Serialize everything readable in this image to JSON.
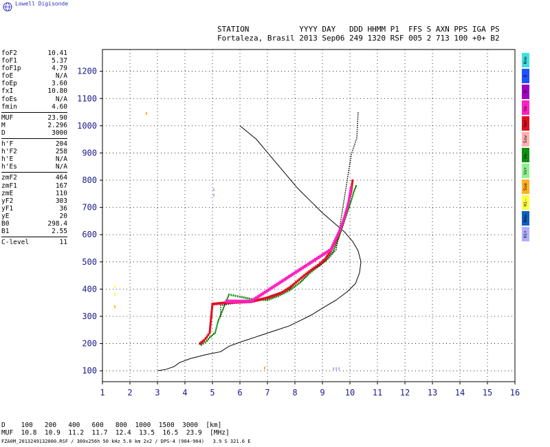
{
  "logo": {
    "text": "Lowell Digisonde"
  },
  "header": {
    "line1": "STATION           YYYY DAY   DDD HHMM P1  FFS S AXN PPS IGA PS",
    "line2": "Fortaleza, Brasil 2013 Sep06 249 1320 RSF 005 2 713 100 +0+ B2"
  },
  "params": [
    {
      "name": "foF2",
      "value": "10.41"
    },
    {
      "name": "foF1",
      "value": "5.37"
    },
    {
      "name": "foF1p",
      "value": "4.79"
    },
    {
      "name": "foE",
      "value": "N/A"
    },
    {
      "name": "foEp",
      "value": "3.60"
    },
    {
      "name": "fxI",
      "value": "10.80"
    },
    {
      "name": "foEs",
      "value": "N/A"
    },
    {
      "name": "fmin",
      "value": "4.60"
    },
    {
      "divider": true
    },
    {
      "name": "MUF",
      "value": "23.90"
    },
    {
      "name": "M",
      "value": "2.296"
    },
    {
      "name": "D",
      "value": "3000"
    },
    {
      "divider": true
    },
    {
      "name": "h'F",
      "value": "204"
    },
    {
      "name": "h'F2",
      "value": "258"
    },
    {
      "name": "h'E",
      "value": "N/A"
    },
    {
      "name": "h'Es",
      "value": "N/A"
    },
    {
      "divider": true
    },
    {
      "name": "zmF2",
      "value": "464"
    },
    {
      "name": "zmF1",
      "value": "167"
    },
    {
      "name": "zmE",
      "value": "110"
    },
    {
      "name": "yF2",
      "value": "303"
    },
    {
      "name": "yF1",
      "value": "36"
    },
    {
      "name": "yE",
      "value": "20"
    },
    {
      "name": "B0",
      "value": "298.4"
    },
    {
      "name": "B1",
      "value": "2.55"
    },
    {
      "divider": true
    },
    {
      "name": "C-level",
      "value": "11"
    }
  ],
  "legend": [
    {
      "label": "Nne",
      "color": "#40e0e0"
    },
    {
      "label": "E",
      "color": "#2050ff"
    },
    {
      "label": "W",
      "color": "#a000c0"
    },
    {
      "label": "Vo-",
      "color": "#ff20c0"
    },
    {
      "label": "Vo+",
      "color": "#e01020"
    },
    {
      "label": "Ssw",
      "color": "#ffb0b0"
    },
    {
      "label": "Vx-",
      "color": "#109010"
    },
    {
      "label": "Vx+",
      "color": "#90f090"
    },
    {
      "label": "Sse",
      "color": "#ffb020"
    },
    {
      "label": "Hi-",
      "color": "#ffff40"
    },
    {
      "label": "Nnw",
      "color": "#1060c0"
    },
    {
      "label": "Hi+",
      "color": "#b0b0ff"
    }
  ],
  "muf_table": {
    "row1": "D    100   200   400   600   800  1000  1500  3000  [km]",
    "row2": "MUF  10.8  10.9  11.2  11.7  12.4  13.5  16.5  23.9  [MHz]"
  },
  "footer": "FZA0M_2013249132000.RSF / 300x256h 50 kHz 5.0 km 2x2 / DPS-4 (904-904)   3.9 S 321.6 E",
  "chart_data": {
    "type": "scatter",
    "x_ticks": [
      1,
      2,
      3,
      4,
      5,
      6,
      7,
      8,
      9,
      10,
      11,
      12,
      13,
      14,
      15,
      16
    ],
    "y_ticks": [
      100,
      200,
      300,
      400,
      500,
      600,
      700,
      800,
      900,
      1000,
      1100,
      1200
    ],
    "xlim": [
      1,
      16
    ],
    "ylim": [
      60,
      1280
    ],
    "grid": true,
    "profile": [
      [
        3.0,
        100
      ],
      [
        3.3,
        105
      ],
      [
        3.6,
        115
      ],
      [
        3.8,
        130
      ],
      [
        4.2,
        145
      ],
      [
        4.8,
        160
      ],
      [
        5.3,
        170
      ],
      [
        5.6,
        190
      ],
      [
        6.0,
        205
      ],
      [
        6.6,
        225
      ],
      [
        7.2,
        245
      ],
      [
        7.8,
        265
      ],
      [
        8.2,
        285
      ],
      [
        8.6,
        305
      ],
      [
        9.0,
        330
      ],
      [
        9.5,
        360
      ],
      [
        9.9,
        390
      ],
      [
        10.2,
        420
      ],
      [
        10.35,
        460
      ],
      [
        10.4,
        500
      ],
      [
        10.3,
        540
      ],
      [
        10.1,
        575
      ],
      [
        9.8,
        610
      ],
      [
        9.4,
        645
      ],
      [
        9.0,
        680
      ],
      [
        8.6,
        720
      ],
      [
        8.1,
        770
      ],
      [
        7.6,
        830
      ],
      [
        7.1,
        890
      ],
      [
        6.6,
        950
      ],
      [
        6.0,
        1000
      ]
    ],
    "trace_red": [
      [
        4.55,
        200
      ],
      [
        4.7,
        212
      ],
      [
        4.8,
        225
      ],
      [
        4.9,
        240
      ],
      [
        5.0,
        345
      ],
      [
        5.5,
        350
      ],
      [
        6.0,
        352
      ],
      [
        6.5,
        356
      ],
      [
        7.0,
        368
      ],
      [
        7.5,
        385
      ],
      [
        7.8,
        405
      ],
      [
        8.1,
        430
      ],
      [
        8.4,
        455
      ],
      [
        8.7,
        478
      ],
      [
        8.9,
        492
      ],
      [
        9.1,
        510
      ],
      [
        9.3,
        540
      ],
      [
        9.5,
        580
      ],
      [
        9.7,
        630
      ],
      [
        9.9,
        700
      ],
      [
        10.05,
        760
      ],
      [
        10.1,
        805
      ]
    ],
    "trace_magenta": [
      [
        5.5,
        355
      ],
      [
        6.0,
        355
      ],
      [
        6.4,
        355
      ],
      [
        9.3,
        545
      ],
      [
        9.6,
        610
      ],
      [
        9.8,
        660
      ],
      [
        9.95,
        720
      ],
      [
        10.05,
        780
      ]
    ],
    "trace_green": [
      [
        4.6,
        195
      ],
      [
        4.8,
        210
      ],
      [
        4.9,
        222
      ],
      [
        5.1,
        240
      ],
      [
        5.2,
        280
      ],
      [
        5.6,
        380
      ],
      [
        6.0,
        372
      ],
      [
        6.5,
        362
      ],
      [
        7.0,
        360
      ],
      [
        7.4,
        375
      ],
      [
        7.8,
        395
      ],
      [
        8.2,
        425
      ],
      [
        8.5,
        455
      ],
      [
        8.8,
        480
      ],
      [
        9.1,
        505
      ],
      [
        9.4,
        540
      ],
      [
        9.6,
        590
      ],
      [
        9.8,
        650
      ],
      [
        10.0,
        710
      ],
      [
        10.15,
        760
      ],
      [
        10.25,
        785
      ]
    ],
    "trace_black": [
      [
        5.3,
        300
      ],
      [
        5.3,
        340
      ],
      [
        5.8,
        348
      ],
      [
        6.4,
        350
      ],
      [
        7.8,
        400
      ],
      [
        8.2,
        440
      ],
      [
        8.6,
        470
      ],
      [
        8.9,
        485
      ],
      [
        9.2,
        510
      ],
      [
        9.5,
        545
      ],
      [
        10.05,
        895
      ],
      [
        10.25,
        955
      ],
      [
        10.3,
        1055
      ]
    ],
    "noise": [
      {
        "x": 2.6,
        "y": 1045,
        "c": "#ffb020"
      },
      {
        "x": 1.45,
        "y": 410,
        "c": "#ffff40"
      },
      {
        "x": 1.45,
        "y": 380,
        "c": "#ffff40"
      },
      {
        "x": 1.45,
        "y": 335,
        "c": "#ffb020"
      },
      {
        "x": 5.05,
        "y": 765,
        "c": "#b0b0ff"
      },
      {
        "x": 5.05,
        "y": 745,
        "c": "#b0b0ff"
      },
      {
        "x": 6.9,
        "y": 110,
        "c": "#ffb020"
      },
      {
        "x": 9.4,
        "y": 108,
        "c": "#b0b0ff"
      },
      {
        "x": 9.5,
        "y": 108,
        "c": "#b0b0ff"
      },
      {
        "x": 9.6,
        "y": 108,
        "c": "#b0b0ff"
      }
    ]
  }
}
